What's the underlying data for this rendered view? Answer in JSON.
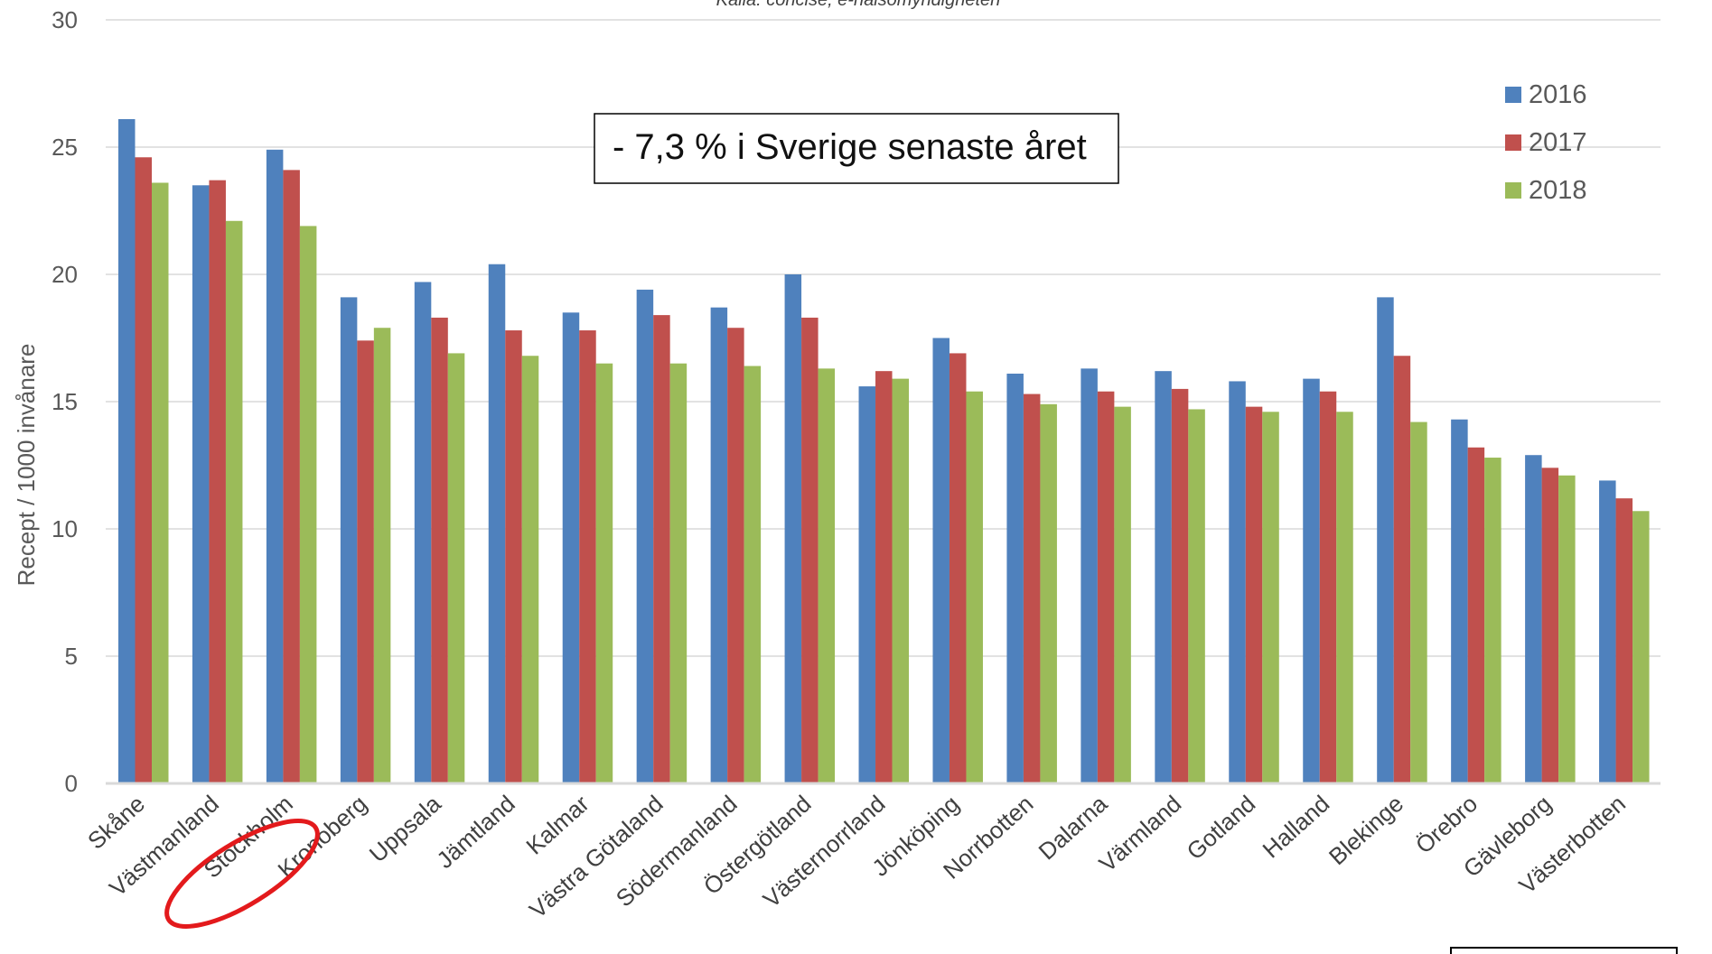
{
  "chart_data": {
    "type": "bar",
    "source_note": "Källa: concise, e-hälsomyndigheten",
    "ylabel": "Recept / 1000 invånare",
    "ylim": [
      0,
      30
    ],
    "yticks": [
      0,
      5,
      10,
      15,
      20,
      25,
      30
    ],
    "grid": true,
    "legend_position": "right",
    "categories": [
      "Skåne",
      "Västmanland",
      "Stockholm",
      "Kronoberg",
      "Uppsala",
      "Jämtland",
      "Kalmar",
      "Västra Götaland",
      "Södermanland",
      "Östergötland",
      "Västernorrland",
      "Jönköping",
      "Norrbotten",
      "Dalarna",
      "Värmland",
      "Gotland",
      "Halland",
      "Blekinge",
      "Örebro",
      "Gävleborg",
      "Västerbotten"
    ],
    "series": [
      {
        "name": "2016",
        "color": "#4f81bd",
        "values": [
          26.1,
          23.5,
          24.9,
          19.1,
          19.7,
          20.4,
          18.5,
          19.4,
          18.7,
          20.0,
          15.6,
          17.5,
          16.1,
          16.3,
          16.2,
          15.8,
          15.9,
          19.1,
          14.3,
          12.9,
          11.9
        ]
      },
      {
        "name": "2017",
        "color": "#c0504d",
        "values": [
          24.6,
          23.7,
          24.1,
          17.4,
          18.3,
          17.8,
          17.8,
          18.4,
          17.9,
          18.3,
          16.2,
          16.9,
          15.3,
          15.4,
          15.5,
          14.8,
          15.4,
          16.8,
          13.2,
          12.4,
          11.2
        ]
      },
      {
        "name": "2018",
        "color": "#9bbb59",
        "values": [
          23.6,
          22.1,
          21.9,
          17.9,
          16.9,
          16.8,
          16.5,
          16.5,
          16.4,
          16.3,
          15.9,
          15.4,
          14.9,
          14.8,
          14.7,
          14.6,
          14.6,
          14.2,
          12.8,
          12.1,
          10.7
        ]
      }
    ],
    "annotation": "- 7,3 % i Sverige senaste året",
    "highlighted_category": "Stockholm",
    "highlight_color": "#e31a1c"
  }
}
